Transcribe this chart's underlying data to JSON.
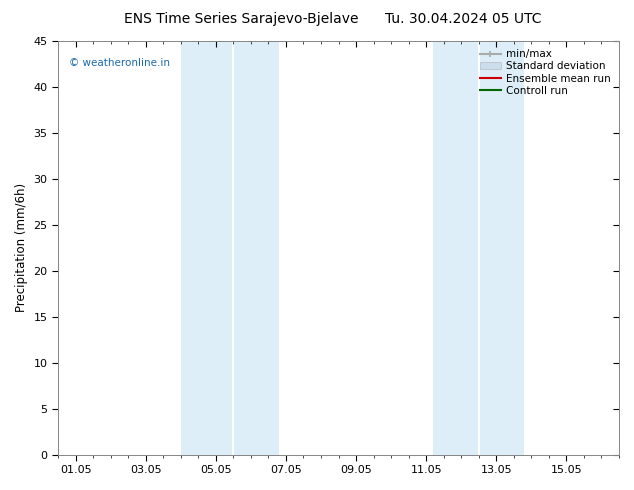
{
  "title_left": "ENS Time Series Sarajevo-Bjelave",
  "title_right": "Tu. 30.04.2024 05 UTC",
  "ylabel": "Precipitation (mm/6h)",
  "ylim": [
    0,
    45
  ],
  "yticks": [
    0,
    5,
    10,
    15,
    20,
    25,
    30,
    35,
    40,
    45
  ],
  "xtick_labels": [
    "01.05",
    "03.05",
    "05.05",
    "07.05",
    "09.05",
    "11.05",
    "13.05",
    "15.05"
  ],
  "xtick_positions": [
    0,
    2,
    4,
    6,
    8,
    10,
    12,
    14
  ],
  "xlim": [
    -0.5,
    15.5
  ],
  "shaded_bands": [
    {
      "x_start": 3.0,
      "x_end": 4.0,
      "color": "#ddeef8"
    },
    {
      "x_start": 4.0,
      "x_end": 5.5,
      "color": "#ddeef8"
    },
    {
      "x_start": 10.0,
      "x_end": 11.0,
      "color": "#ddeef8"
    },
    {
      "x_start": 11.0,
      "x_end": 12.5,
      "color": "#ddeef8"
    }
  ],
  "watermark_text": "© weatheronline.in",
  "watermark_color": "#1a6aad",
  "background_color": "#ffffff",
  "plot_bg_color": "#ffffff",
  "legend_entries": [
    {
      "label": "min/max",
      "color": "#aaaaaa",
      "lw": 1.5
    },
    {
      "label": "Standard deviation",
      "color": "#ccddee",
      "lw": 8
    },
    {
      "label": "Ensemble mean run",
      "color": "#cc0000",
      "lw": 1.5
    },
    {
      "label": "Controll run",
      "color": "#006600",
      "lw": 1.5
    }
  ],
  "title_fontsize": 10,
  "axis_fontsize": 8.5,
  "tick_fontsize": 8,
  "legend_fontsize": 7.5
}
